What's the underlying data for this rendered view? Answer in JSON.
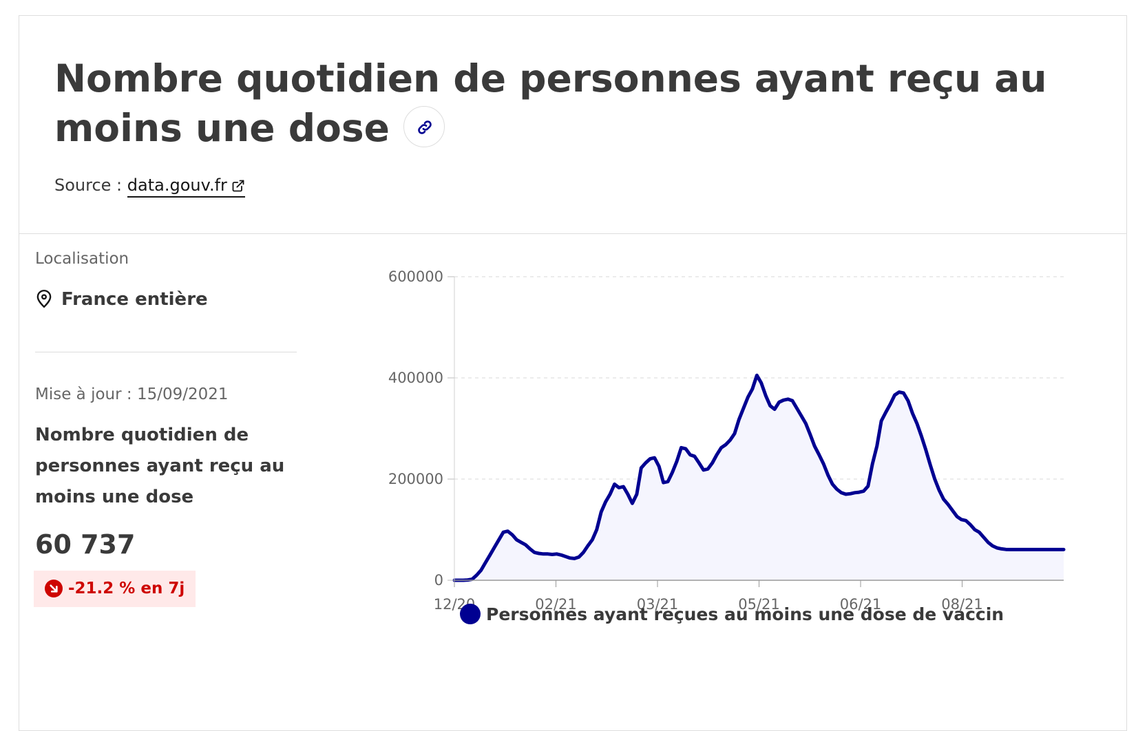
{
  "header": {
    "title": "Nombre quotidien de personnes ayant reçu au moins une dose",
    "source_prefix": "Source : ",
    "source_link": "data.gouv.fr"
  },
  "sidebar": {
    "localisation_label": "Localisation",
    "localisation_value": "France entière",
    "update_text": "Mise à jour : 15/09/2021",
    "kpi_title": "Nombre quotidien de personnes ayant reçu au moins une dose",
    "kpi_value": "60 737",
    "kpi_change": "-21.2 % en 7j"
  },
  "icons": {
    "title_link": "link-icon",
    "source_external": "external-link-icon",
    "location": "map-pin-icon",
    "trend": "arrow-down-right-icon"
  },
  "colors": {
    "series": "#000091",
    "area_fill": "#f5f5fe",
    "badge_bg": "#ffe9e9",
    "badge_text": "#ce0500"
  },
  "chart_data": {
    "type": "area",
    "title": "",
    "xlabel": "",
    "ylabel": "",
    "ylim": [
      0,
      600000
    ],
    "y_ticks": [
      "0",
      "200000",
      "400000",
      "600000"
    ],
    "x_ticks": [
      "12/20",
      "02/21",
      "03/21",
      "05/21",
      "06/21",
      "08/21"
    ],
    "grid": "horizontal dashed",
    "legend_position": "bottom",
    "series": [
      {
        "name": "Personnes ayant reçues au moins une dose de vaccin",
        "x": [
          0,
          2,
          4,
          6,
          8,
          10,
          12,
          14,
          16,
          18,
          20,
          22,
          24,
          26,
          28,
          30,
          32,
          34,
          36,
          38,
          40,
          42,
          44,
          46,
          48,
          50,
          52,
          54,
          56,
          58,
          60,
          62,
          64,
          66,
          68,
          70,
          72,
          74,
          76,
          78,
          80,
          82,
          84,
          86,
          88,
          90,
          92,
          94,
          96,
          98,
          100,
          102,
          104,
          106,
          108,
          110,
          112,
          114,
          116,
          118,
          120,
          122,
          124,
          126,
          128,
          130,
          132,
          134,
          136,
          138,
          140,
          142,
          144,
          146,
          148,
          150,
          152,
          154,
          156,
          158,
          160,
          162,
          164,
          166,
          168,
          170,
          172,
          174,
          176,
          178,
          180,
          182,
          184,
          186,
          188,
          190,
          192,
          194,
          196,
          198,
          200,
          202,
          204,
          206,
          208,
          210,
          212,
          214,
          216,
          218,
          220,
          222,
          224,
          226,
          228,
          230,
          232,
          234,
          236,
          238,
          240,
          242,
          244,
          246,
          248,
          250,
          252,
          254,
          256,
          258,
          260,
          262,
          264,
          266,
          268,
          270,
          272,
          274
        ],
        "values": [
          0,
          0,
          0,
          500,
          2000,
          10000,
          20000,
          35000,
          50000,
          65000,
          80000,
          95000,
          97000,
          90000,
          80000,
          75000,
          70000,
          62000,
          55000,
          53000,
          52000,
          52000,
          51000,
          52000,
          50000,
          47000,
          44000,
          43000,
          46000,
          55000,
          68000,
          80000,
          100000,
          135000,
          155000,
          170000,
          190000,
          183000,
          185000,
          170000,
          152000,
          170000,
          222000,
          232000,
          240000,
          242000,
          225000,
          193000,
          195000,
          213000,
          235000,
          262000,
          260000,
          248000,
          245000,
          232000,
          218000,
          220000,
          232000,
          248000,
          262000,
          268000,
          277000,
          290000,
          318000,
          340000,
          362000,
          378000,
          405000,
          390000,
          365000,
          345000,
          338000,
          352000,
          356000,
          358000,
          355000,
          340000,
          325000,
          310000,
          288000,
          265000,
          248000,
          230000,
          208000,
          190000,
          180000,
          173000,
          170000,
          171000,
          173000,
          174000,
          176000,
          186000,
          230000,
          265000,
          315000,
          332000,
          348000,
          366000,
          372000,
          370000,
          355000,
          330000,
          310000,
          285000,
          258000,
          228000,
          200000,
          178000,
          160000,
          150000,
          138000,
          126000,
          120000,
          118000,
          110000,
          100000,
          95000,
          85000,
          75000,
          68000,
          64000,
          62000,
          61000,
          60737,
          60737,
          60737,
          60737,
          60737,
          60737,
          60737,
          60737,
          60737,
          60737,
          60737,
          60737,
          60737
        ]
      }
    ]
  }
}
